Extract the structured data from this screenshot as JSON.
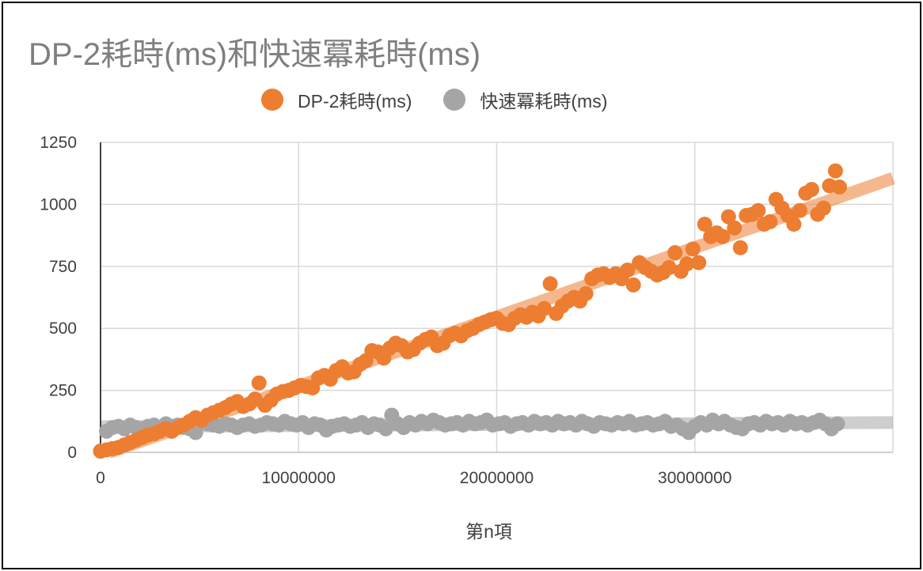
{
  "chart_data": {
    "type": "scatter",
    "title": "DP-2耗時(ms)和快速冪耗時(ms)",
    "xlabel": "第n項",
    "ylabel": "",
    "xlim": [
      0,
      40000000
    ],
    "ylim": [
      0,
      1250
    ],
    "x_ticks": [
      "0",
      "10000000",
      "20000000",
      "30000000"
    ],
    "y_ticks": [
      "0",
      "250",
      "500",
      "750",
      "1000",
      "1250"
    ],
    "grid": true,
    "legend_position": "top",
    "series": [
      {
        "name": "DP-2耗時(ms)",
        "color": "#ED7D31",
        "trendline": true,
        "points": [
          [
            0,
            5
          ],
          [
            300000,
            10
          ],
          [
            600000,
            15
          ],
          [
            900000,
            20
          ],
          [
            1200000,
            30
          ],
          [
            1500000,
            40
          ],
          [
            1800000,
            50
          ],
          [
            2100000,
            60
          ],
          [
            2400000,
            70
          ],
          [
            2700000,
            75
          ],
          [
            3000000,
            85
          ],
          [
            3300000,
            95
          ],
          [
            3600000,
            85
          ],
          [
            3900000,
            100
          ],
          [
            4200000,
            110
          ],
          [
            4500000,
            125
          ],
          [
            4800000,
            140
          ],
          [
            5100000,
            130
          ],
          [
            5400000,
            150
          ],
          [
            5700000,
            160
          ],
          [
            6000000,
            170
          ],
          [
            6300000,
            180
          ],
          [
            6600000,
            195
          ],
          [
            6900000,
            205
          ],
          [
            7200000,
            185
          ],
          [
            7500000,
            195
          ],
          [
            7800000,
            215
          ],
          [
            8000000,
            280
          ],
          [
            8300000,
            190
          ],
          [
            8600000,
            210
          ],
          [
            8900000,
            235
          ],
          [
            9200000,
            245
          ],
          [
            9500000,
            250
          ],
          [
            9800000,
            260
          ],
          [
            10100000,
            270
          ],
          [
            10400000,
            265
          ],
          [
            10700000,
            260
          ],
          [
            11000000,
            300
          ],
          [
            11300000,
            310
          ],
          [
            11600000,
            295
          ],
          [
            11900000,
            330
          ],
          [
            12200000,
            345
          ],
          [
            12500000,
            320
          ],
          [
            12800000,
            325
          ],
          [
            13100000,
            355
          ],
          [
            13400000,
            370
          ],
          [
            13700000,
            410
          ],
          [
            14000000,
            405
          ],
          [
            14300000,
            380
          ],
          [
            14600000,
            420
          ],
          [
            14900000,
            440
          ],
          [
            15200000,
            430
          ],
          [
            15500000,
            405
          ],
          [
            15800000,
            415
          ],
          [
            16100000,
            440
          ],
          [
            16400000,
            455
          ],
          [
            16700000,
            465
          ],
          [
            17000000,
            430
          ],
          [
            17300000,
            440
          ],
          [
            17600000,
            470
          ],
          [
            17900000,
            480
          ],
          [
            18200000,
            470
          ],
          [
            18500000,
            490
          ],
          [
            18800000,
            500
          ],
          [
            19100000,
            515
          ],
          [
            19400000,
            525
          ],
          [
            19700000,
            535
          ],
          [
            20000000,
            540
          ],
          [
            20300000,
            520
          ],
          [
            20600000,
            515
          ],
          [
            20900000,
            540
          ],
          [
            21200000,
            555
          ],
          [
            21500000,
            545
          ],
          [
            21800000,
            565
          ],
          [
            22100000,
            550
          ],
          [
            22400000,
            580
          ],
          [
            22700000,
            680
          ],
          [
            23000000,
            560
          ],
          [
            23300000,
            590
          ],
          [
            23600000,
            610
          ],
          [
            23900000,
            625
          ],
          [
            24200000,
            610
          ],
          [
            24500000,
            640
          ],
          [
            24800000,
            700
          ],
          [
            25100000,
            715
          ],
          [
            25400000,
            720
          ],
          [
            25700000,
            705
          ],
          [
            26000000,
            720
          ],
          [
            26300000,
            700
          ],
          [
            26600000,
            735
          ],
          [
            26900000,
            675
          ],
          [
            27200000,
            765
          ],
          [
            27500000,
            745
          ],
          [
            27800000,
            730
          ],
          [
            28100000,
            715
          ],
          [
            28400000,
            725
          ],
          [
            28700000,
            745
          ],
          [
            29000000,
            805
          ],
          [
            29300000,
            730
          ],
          [
            29600000,
            760
          ],
          [
            29900000,
            820
          ],
          [
            30200000,
            765
          ],
          [
            30500000,
            920
          ],
          [
            30800000,
            870
          ],
          [
            31100000,
            885
          ],
          [
            31400000,
            870
          ],
          [
            31700000,
            950
          ],
          [
            32000000,
            905
          ],
          [
            32300000,
            825
          ],
          [
            32600000,
            955
          ],
          [
            32900000,
            960
          ],
          [
            33200000,
            975
          ],
          [
            33500000,
            920
          ],
          [
            33800000,
            930
          ],
          [
            34100000,
            1020
          ],
          [
            34400000,
            985
          ],
          [
            34700000,
            955
          ],
          [
            35000000,
            920
          ],
          [
            35300000,
            975
          ],
          [
            35600000,
            1045
          ],
          [
            35900000,
            1060
          ],
          [
            36200000,
            960
          ],
          [
            36500000,
            985
          ],
          [
            36800000,
            1075
          ],
          [
            37100000,
            1135
          ],
          [
            37300000,
            1070
          ]
        ]
      },
      {
        "name": "快速冪耗時(ms)",
        "color": "#A5A5A5",
        "trendline": true,
        "points": [
          [
            0,
            5
          ],
          [
            300000,
            85
          ],
          [
            600000,
            100
          ],
          [
            900000,
            105
          ],
          [
            1200000,
            95
          ],
          [
            1500000,
            110
          ],
          [
            1800000,
            100
          ],
          [
            2100000,
            95
          ],
          [
            2400000,
            105
          ],
          [
            2700000,
            110
          ],
          [
            3000000,
            100
          ],
          [
            3300000,
            115
          ],
          [
            3600000,
            105
          ],
          [
            3900000,
            110
          ],
          [
            4200000,
            100
          ],
          [
            4500000,
            95
          ],
          [
            4800000,
            80
          ],
          [
            5100000,
            120
          ],
          [
            5400000,
            115
          ],
          [
            5700000,
            110
          ],
          [
            6000000,
            105
          ],
          [
            6300000,
            115
          ],
          [
            6600000,
            110
          ],
          [
            6900000,
            100
          ],
          [
            7200000,
            110
          ],
          [
            7500000,
            115
          ],
          [
            7800000,
            105
          ],
          [
            8100000,
            110
          ],
          [
            8400000,
            120
          ],
          [
            8700000,
            115
          ],
          [
            9000000,
            110
          ],
          [
            9300000,
            125
          ],
          [
            9600000,
            115
          ],
          [
            9900000,
            110
          ],
          [
            10200000,
            120
          ],
          [
            10500000,
            100
          ],
          [
            10800000,
            115
          ],
          [
            11100000,
            110
          ],
          [
            11400000,
            90
          ],
          [
            11700000,
            105
          ],
          [
            12000000,
            110
          ],
          [
            12300000,
            115
          ],
          [
            12600000,
            105
          ],
          [
            12900000,
            110
          ],
          [
            13200000,
            120
          ],
          [
            13500000,
            100
          ],
          [
            13800000,
            115
          ],
          [
            14100000,
            110
          ],
          [
            14400000,
            95
          ],
          [
            14700000,
            150
          ],
          [
            15000000,
            115
          ],
          [
            15300000,
            100
          ],
          [
            15600000,
            120
          ],
          [
            15900000,
            110
          ],
          [
            16200000,
            125
          ],
          [
            16500000,
            115
          ],
          [
            16800000,
            130
          ],
          [
            17100000,
            120
          ],
          [
            17400000,
            110
          ],
          [
            17700000,
            115
          ],
          [
            18000000,
            120
          ],
          [
            18300000,
            110
          ],
          [
            18600000,
            125
          ],
          [
            18900000,
            115
          ],
          [
            19200000,
            120
          ],
          [
            19500000,
            130
          ],
          [
            19800000,
            110
          ],
          [
            20100000,
            115
          ],
          [
            20400000,
            120
          ],
          [
            20700000,
            105
          ],
          [
            21000000,
            115
          ],
          [
            21300000,
            120
          ],
          [
            21600000,
            110
          ],
          [
            21900000,
            125
          ],
          [
            22200000,
            115
          ],
          [
            22500000,
            120
          ],
          [
            22800000,
            110
          ],
          [
            23100000,
            125
          ],
          [
            23400000,
            115
          ],
          [
            23700000,
            120
          ],
          [
            24000000,
            110
          ],
          [
            24300000,
            125
          ],
          [
            24600000,
            115
          ],
          [
            24900000,
            105
          ],
          [
            25200000,
            120
          ],
          [
            25500000,
            115
          ],
          [
            25800000,
            110
          ],
          [
            26100000,
            120
          ],
          [
            26400000,
            115
          ],
          [
            26700000,
            125
          ],
          [
            27000000,
            110
          ],
          [
            27300000,
            115
          ],
          [
            27600000,
            120
          ],
          [
            27900000,
            110
          ],
          [
            28200000,
            115
          ],
          [
            28500000,
            125
          ],
          [
            28800000,
            105
          ],
          [
            29100000,
            110
          ],
          [
            29400000,
            95
          ],
          [
            29700000,
            80
          ],
          [
            30000000,
            105
          ],
          [
            30300000,
            120
          ],
          [
            30600000,
            110
          ],
          [
            30900000,
            130
          ],
          [
            31200000,
            115
          ],
          [
            31500000,
            125
          ],
          [
            31800000,
            110
          ],
          [
            32100000,
            100
          ],
          [
            32400000,
            95
          ],
          [
            32700000,
            115
          ],
          [
            33000000,
            120
          ],
          [
            33300000,
            110
          ],
          [
            33600000,
            125
          ],
          [
            33900000,
            115
          ],
          [
            34200000,
            120
          ],
          [
            34500000,
            110
          ],
          [
            34800000,
            125
          ],
          [
            35100000,
            115
          ],
          [
            35400000,
            120
          ],
          [
            35700000,
            110
          ],
          [
            36000000,
            120
          ],
          [
            36300000,
            130
          ],
          [
            36600000,
            115
          ],
          [
            36900000,
            95
          ],
          [
            37200000,
            115
          ]
        ]
      }
    ]
  }
}
